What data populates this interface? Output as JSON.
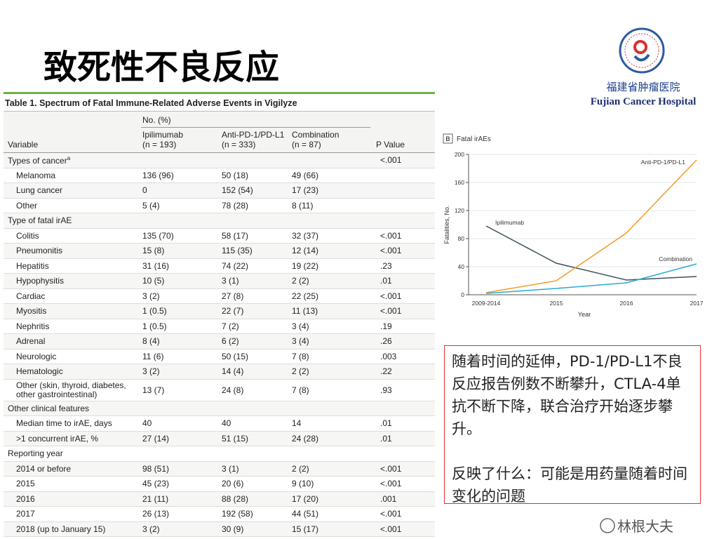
{
  "slide_title": "致死性不良反应",
  "hospital": {
    "name_cn": "福建省肿瘤医院",
    "name_en": "Fujian Cancer Hospital"
  },
  "table": {
    "title": "Table 1. Spectrum of Fatal Immune-Related Adverse Events in Vigilyze",
    "header": {
      "no_pct": "No. (%)",
      "variable": "Variable",
      "p_value": "P Value",
      "columns": [
        {
          "name": "Ipilimumab",
          "n": "(n = 193)"
        },
        {
          "name": "Anti-PD-1/PD-L1",
          "n": "(n = 333)"
        },
        {
          "name": "Combination",
          "n": "(n = 87)"
        }
      ]
    },
    "groups": [
      {
        "heading": "Types of cancer",
        "note": "a",
        "p_value": "<.001",
        "rows": [
          [
            "Melanoma",
            "136 (96)",
            "50 (18)",
            "49 (66)"
          ],
          [
            "Lung cancer",
            "0",
            "152 (54)",
            "17 (23)"
          ],
          [
            "Other",
            "5 (4)",
            "78 (28)",
            "8 (11)"
          ]
        ]
      },
      {
        "heading": "Type of fatal irAE",
        "rows": [
          [
            "Colitis",
            "135 (70)",
            "58 (17)",
            "32 (37)",
            "<.001"
          ],
          [
            "Pneumonitis",
            "15 (8)",
            "115 (35)",
            "12 (14)",
            "<.001"
          ],
          [
            "Hepatitis",
            "31 (16)",
            "74 (22)",
            "19 (22)",
            ".23"
          ],
          [
            "Hypophysitis",
            "10 (5)",
            "3 (1)",
            "2 (2)",
            ".01"
          ],
          [
            "Cardiac",
            "3 (2)",
            "27 (8)",
            "22 (25)",
            "<.001"
          ],
          [
            "Myositis",
            "1 (0.5)",
            "22 (7)",
            "11 (13)",
            "<.001"
          ],
          [
            "Nephritis",
            "1 (0.5)",
            "7 (2)",
            "3 (4)",
            ".19"
          ],
          [
            "Adrenal",
            "8 (4)",
            "6 (2)",
            "3 (4)",
            ".26"
          ],
          [
            "Neurologic",
            "11 (6)",
            "50 (15)",
            "7 (8)",
            ".003"
          ],
          [
            "Hematologic",
            "3 (2)",
            "14 (4)",
            "2 (2)",
            ".22"
          ],
          [
            "Other (skin, thyroid, diabetes, other gastrointestinal)",
            "13 (7)",
            "24 (8)",
            "7 (8)",
            ".93"
          ]
        ]
      },
      {
        "heading": "Other clinical features",
        "rows": [
          [
            "Median time to irAE, days",
            "40",
            "40",
            "14",
            ".01"
          ],
          [
            ">1 concurrent irAE, %",
            "27 (14)",
            "51 (15)",
            "24 (28)",
            ".01"
          ]
        ]
      },
      {
        "heading": "Reporting year",
        "rows": [
          [
            "2014 or before",
            "98 (51)",
            "3 (1)",
            "2 (2)",
            "<.001"
          ],
          [
            "2015",
            "45 (23)",
            "20 (6)",
            "9 (10)",
            "<.001"
          ],
          [
            "2016",
            "21 (11)",
            "88 (28)",
            "17 (20)",
            ".001"
          ],
          [
            "2017",
            "26 (13)",
            "192 (58)",
            "44 (51)",
            "<.001"
          ],
          [
            "2018 (up to January 15)",
            "3 (2)",
            "30 (9)",
            "15 (17)",
            "<.001"
          ]
        ]
      }
    ]
  },
  "chart_data": {
    "type": "line",
    "panel": "B",
    "title": "Fatal irAEs",
    "x_label": "Year",
    "y_label": "Fatalities, No.",
    "categories": [
      "2009-2014",
      "2015",
      "2016",
      "2017"
    ],
    "series": [
      {
        "name": "Ipilimumab",
        "color": "#3f5159",
        "values": [
          98,
          45,
          21,
          26
        ]
      },
      {
        "name": "Anti-PD-1/PD-L1",
        "color": "#f39b2a",
        "values": [
          3,
          20,
          88,
          192
        ]
      },
      {
        "name": "Combination",
        "color": "#27a9d9",
        "values": [
          2,
          9,
          17,
          44
        ]
      }
    ],
    "ylim": [
      0,
      200
    ],
    "yticks": [
      0,
      40,
      80,
      120,
      160,
      200
    ],
    "grid": true
  },
  "note": {
    "paragraphs": [
      "随着时间的延伸，PD-1/PD-L1不良反应报告例数不断攀升，CTLA-4单抗不断下降，联合治疗开始逐步攀升。",
      "反映了什么：可能是用药量随着时间变化的问题"
    ]
  },
  "watermark": "林根大夫"
}
